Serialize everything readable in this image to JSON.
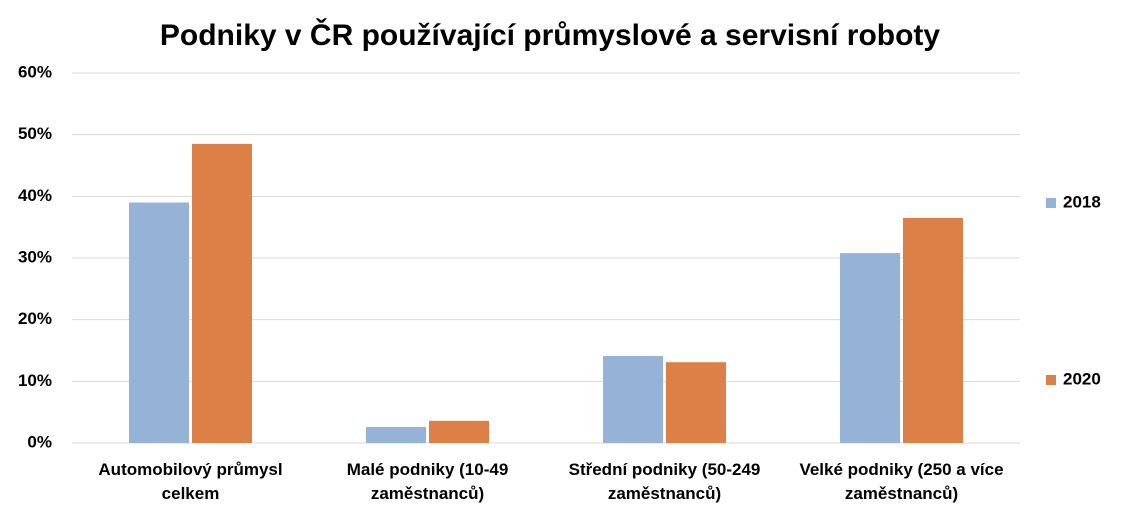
{
  "chart_data": {
    "type": "bar",
    "title": "Podniky v ČR používající průmyslové a servisní roboty",
    "categories": [
      "Automobilový průmysl celkem",
      "Malé podniky (10-49 zaměstnanců)",
      "Střední podniky (50-249 zaměstnanců)",
      "Velké podniky (250 a více zaměstnanců)"
    ],
    "series": [
      {
        "name": "2018",
        "color": "#95b3d7",
        "values": [
          39,
          2.6,
          14.1,
          30.8
        ]
      },
      {
        "name": "2020",
        "color": "#dd8047",
        "values": [
          48.5,
          3.6,
          13.1,
          36.5
        ]
      }
    ],
    "ylim": [
      0,
      60
    ],
    "yticks": [
      {
        "value": 0,
        "label": "0%"
      },
      {
        "value": 10,
        "label": "10%"
      },
      {
        "value": 20,
        "label": "20%"
      },
      {
        "value": 30,
        "label": "30%"
      },
      {
        "value": 40,
        "label": "40%"
      },
      {
        "value": 50,
        "label": "50%"
      },
      {
        "value": 60,
        "label": "60%"
      }
    ],
    "grid": true,
    "legend": "right"
  }
}
